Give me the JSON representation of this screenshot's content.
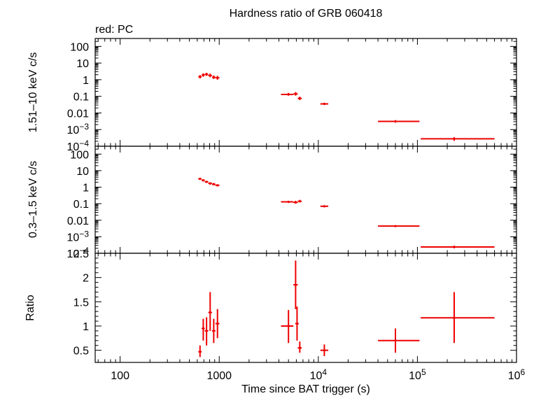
{
  "title": "Hardness ratio of GRB 060418",
  "legend_text": "red: PC",
  "xlabel": "Time since BAT trigger (s)",
  "colors": {
    "data": "#ee0000",
    "axes": "#000000"
  },
  "x_ticks": [
    {
      "value": 100,
      "label": "100"
    },
    {
      "value": 1000,
      "label": "1000"
    },
    {
      "value": 10000,
      "label": "10",
      "sup": "4"
    },
    {
      "value": 100000,
      "label": "10",
      "sup": "5"
    },
    {
      "value": 1000000,
      "label": "10",
      "sup": "6"
    }
  ],
  "chart_data": [
    {
      "type": "scatter",
      "panel": "top",
      "ylabel": "1.51–10 keV c/s",
      "x_scale": "log",
      "y_scale": "log",
      "xlim": [
        56,
        1000000
      ],
      "ylim": [
        0.0001,
        300
      ],
      "y_ticks": [
        {
          "value": 100,
          "label": "100"
        },
        {
          "value": 10,
          "label": "10"
        },
        {
          "value": 1,
          "label": "1"
        },
        {
          "value": 0.1,
          "label": "0.1"
        },
        {
          "value": 0.01,
          "label": "0.01"
        },
        {
          "value": 0.001,
          "label": "10",
          "sup": "−3"
        },
        {
          "value": 0.0001,
          "label": "10",
          "sup": "−4"
        }
      ],
      "points": [
        {
          "x": 640,
          "xlo": 615,
          "xhi": 665,
          "y": 1.5,
          "ylo": 1.2,
          "yhi": 1.9
        },
        {
          "x": 690,
          "xlo": 665,
          "xhi": 715,
          "y": 1.9,
          "ylo": 1.5,
          "yhi": 2.4
        },
        {
          "x": 745,
          "xlo": 715,
          "xhi": 775,
          "y": 2.1,
          "ylo": 1.7,
          "yhi": 2.6
        },
        {
          "x": 810,
          "xlo": 775,
          "xhi": 845,
          "y": 1.8,
          "ylo": 1.4,
          "yhi": 2.3
        },
        {
          "x": 880,
          "xlo": 845,
          "xhi": 915,
          "y": 1.4,
          "ylo": 1.1,
          "yhi": 1.8
        },
        {
          "x": 960,
          "xlo": 915,
          "xhi": 1005,
          "y": 1.3,
          "ylo": 1.0,
          "yhi": 1.7
        },
        {
          "x": 5000,
          "xlo": 4200,
          "xhi": 5600,
          "y": 0.13,
          "ylo": 0.11,
          "yhi": 0.16
        },
        {
          "x": 5900,
          "xlo": 5600,
          "xhi": 6200,
          "y": 0.14,
          "ylo": 0.11,
          "yhi": 0.18
        },
        {
          "x": 6500,
          "xlo": 6200,
          "xhi": 6800,
          "y": 0.075,
          "ylo": 0.06,
          "yhi": 0.095
        },
        {
          "x": 11500,
          "xlo": 10500,
          "xhi": 12600,
          "y": 0.035,
          "ylo": 0.03,
          "yhi": 0.041
        },
        {
          "x": 60000,
          "xlo": 40000,
          "xhi": 105000,
          "y": 0.0031,
          "ylo": 0.0026,
          "yhi": 0.0037
        },
        {
          "x": 235000,
          "xlo": 108000,
          "xhi": 600000,
          "y": 0.00028,
          "ylo": 0.00021,
          "yhi": 0.00035
        }
      ]
    },
    {
      "type": "scatter",
      "panel": "middle",
      "ylabel": "0.3–1.5 keV c/s",
      "x_scale": "log",
      "y_scale": "log",
      "xlim": [
        56,
        1000000
      ],
      "ylim": [
        0.0001,
        300
      ],
      "y_ticks": [
        {
          "value": 100,
          "label": "100"
        },
        {
          "value": 10,
          "label": "10"
        },
        {
          "value": 1,
          "label": "1"
        },
        {
          "value": 0.1,
          "label": "0.1"
        },
        {
          "value": 0.01,
          "label": "0.01"
        },
        {
          "value": 0.001,
          "label": "10",
          "sup": "−3"
        },
        {
          "value": 0.0001,
          "label": "10",
          "sup": "−4"
        }
      ],
      "points": [
        {
          "x": 640,
          "xlo": 615,
          "xhi": 665,
          "y": 3.2,
          "ylo": 2.8,
          "yhi": 3.6
        },
        {
          "x": 690,
          "xlo": 665,
          "xhi": 715,
          "y": 2.6,
          "ylo": 2.2,
          "yhi": 3.0
        },
        {
          "x": 745,
          "xlo": 715,
          "xhi": 775,
          "y": 2.1,
          "ylo": 1.8,
          "yhi": 2.4
        },
        {
          "x": 810,
          "xlo": 775,
          "xhi": 845,
          "y": 1.7,
          "ylo": 1.4,
          "yhi": 2.0
        },
        {
          "x": 880,
          "xlo": 845,
          "xhi": 915,
          "y": 1.5,
          "ylo": 1.3,
          "yhi": 1.8
        },
        {
          "x": 960,
          "xlo": 915,
          "xhi": 1005,
          "y": 1.3,
          "ylo": 1.1,
          "yhi": 1.5
        },
        {
          "x": 5000,
          "xlo": 4200,
          "xhi": 5600,
          "y": 0.13,
          "ylo": 0.11,
          "yhi": 0.15
        },
        {
          "x": 5900,
          "xlo": 5600,
          "xhi": 6200,
          "y": 0.12,
          "ylo": 0.1,
          "yhi": 0.15
        },
        {
          "x": 6500,
          "xlo": 6200,
          "xhi": 6800,
          "y": 0.14,
          "ylo": 0.12,
          "yhi": 0.17
        },
        {
          "x": 11500,
          "xlo": 10500,
          "xhi": 12600,
          "y": 0.07,
          "ylo": 0.06,
          "yhi": 0.08
        },
        {
          "x": 60000,
          "xlo": 40000,
          "xhi": 105000,
          "y": 0.0044,
          "ylo": 0.0039,
          "yhi": 0.0049
        },
        {
          "x": 235000,
          "xlo": 108000,
          "xhi": 600000,
          "y": 0.00024,
          "ylo": 0.0002,
          "yhi": 0.00029
        }
      ]
    },
    {
      "type": "scatter",
      "panel": "bottom",
      "ylabel": "Ratio",
      "x_scale": "log",
      "y_scale": "linear",
      "xlim": [
        56,
        1000000
      ],
      "ylim": [
        0.25,
        2.5
      ],
      "y_ticks": [
        {
          "value": 2.5,
          "label": "2.5"
        },
        {
          "value": 2,
          "label": "2"
        },
        {
          "value": 1.5,
          "label": "1.5"
        },
        {
          "value": 1,
          "label": "1"
        },
        {
          "value": 0.5,
          "label": "0.5"
        }
      ],
      "points": [
        {
          "x": 640,
          "xlo": 615,
          "xhi": 665,
          "y": 0.47,
          "ylo": 0.36,
          "yhi": 0.6
        },
        {
          "x": 690,
          "xlo": 665,
          "xhi": 715,
          "y": 0.95,
          "ylo": 0.7,
          "yhi": 1.15
        },
        {
          "x": 745,
          "xlo": 715,
          "xhi": 775,
          "y": 0.9,
          "ylo": 0.6,
          "yhi": 1.18
        },
        {
          "x": 810,
          "xlo": 775,
          "xhi": 845,
          "y": 1.28,
          "ylo": 0.9,
          "yhi": 1.7
        },
        {
          "x": 880,
          "xlo": 845,
          "xhi": 915,
          "y": 0.9,
          "ylo": 0.65,
          "yhi": 1.15
        },
        {
          "x": 960,
          "xlo": 915,
          "xhi": 1005,
          "y": 1.05,
          "ylo": 0.75,
          "yhi": 1.35
        },
        {
          "x": 5000,
          "xlo": 4200,
          "xhi": 5600,
          "y": 1.0,
          "ylo": 0.65,
          "yhi": 1.33
        },
        {
          "x": 5900,
          "xlo": 5600,
          "xhi": 6200,
          "y": 1.85,
          "ylo": 1.35,
          "yhi": 2.35
        },
        {
          "x": 6100,
          "xlo": 5850,
          "xhi": 6350,
          "y": 1.05,
          "ylo": 0.7,
          "yhi": 1.4
        },
        {
          "x": 6500,
          "xlo": 6200,
          "xhi": 6800,
          "y": 0.55,
          "ylo": 0.45,
          "yhi": 0.68
        },
        {
          "x": 11500,
          "xlo": 10500,
          "xhi": 12600,
          "y": 0.5,
          "ylo": 0.38,
          "yhi": 0.62
        },
        {
          "x": 60000,
          "xlo": 40000,
          "xhi": 105000,
          "y": 0.7,
          "ylo": 0.45,
          "yhi": 0.95
        },
        {
          "x": 235000,
          "xlo": 108000,
          "xhi": 600000,
          "y": 1.17,
          "ylo": 0.65,
          "yhi": 1.7
        }
      ]
    }
  ]
}
